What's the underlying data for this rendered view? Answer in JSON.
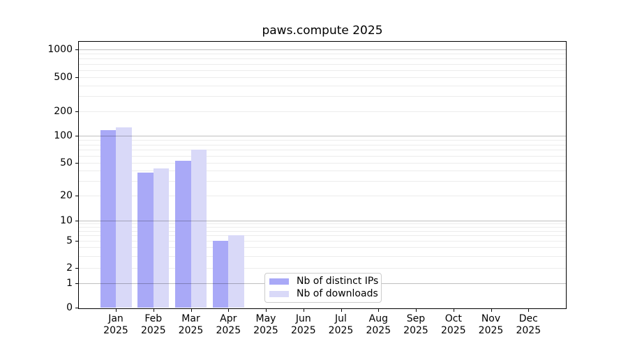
{
  "chart_data": {
    "type": "bar",
    "title": "paws.compute 2025",
    "categories": [
      "Jan 2025",
      "Feb 2025",
      "Mar 2025",
      "Apr 2025",
      "May 2025",
      "Jun 2025",
      "Jul 2025",
      "Aug 2025",
      "Sep 2025",
      "Oct 2025",
      "Nov 2025",
      "Dec 2025"
    ],
    "series": [
      {
        "name": "Nb of distinct IPs",
        "color": "#a9a9f7",
        "values": [
          118,
          38,
          53,
          5,
          0,
          0,
          0,
          0,
          0,
          0,
          0,
          0
        ]
      },
      {
        "name": "Nb of downloads",
        "color": "#d9d9f8",
        "values": [
          127,
          43,
          70,
          6,
          0,
          0,
          0,
          0,
          0,
          0,
          0,
          0
        ]
      }
    ],
    "xlabel": "",
    "ylabel": "",
    "yscale": "symlog",
    "yticks": [
      0,
      1,
      2,
      5,
      10,
      20,
      50,
      100,
      200,
      500,
      1000
    ],
    "ylim": [
      0,
      1200
    ],
    "grid": "horizontal, major and minor",
    "legend_position": "lower center, inside plot",
    "colors": {
      "major_gridline": "#bfbfbf",
      "minor_gridline": "#ececec",
      "axis": "#000000",
      "background": "#ffffff"
    }
  }
}
